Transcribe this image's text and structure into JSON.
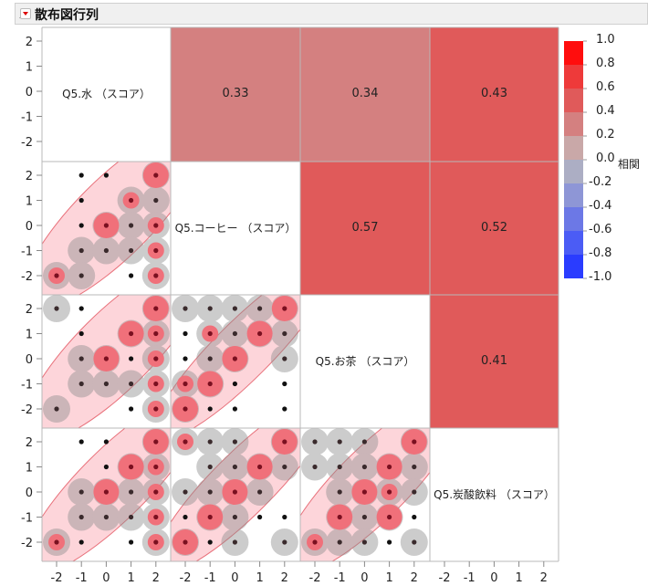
{
  "header": {
    "title": "散布図行列"
  },
  "chart_data": {
    "type": "scatter",
    "variables": [
      "Q5.水 （スコア）",
      "Q5.コーヒー （スコア）",
      "Q5.お茶 （スコア）",
      "Q5.炭酸飲料 （スコア）"
    ],
    "axis_range": [
      -2,
      2
    ],
    "tick_labels": [
      "-2",
      "-1",
      "0",
      "1",
      "2"
    ],
    "correlations": [
      {
        "row": 0,
        "col": 1,
        "value": "0.33"
      },
      {
        "row": 0,
        "col": 2,
        "value": "0.34"
      },
      {
        "row": 0,
        "col": 3,
        "value": "0.43"
      },
      {
        "row": 1,
        "col": 2,
        "value": "0.57"
      },
      {
        "row": 1,
        "col": 3,
        "value": "0.52"
      },
      {
        "row": 2,
        "col": 3,
        "value": "0.41"
      }
    ],
    "density_levels_note_keys": [
      "dot",
      "grey",
      "red-small",
      "red-large"
    ],
    "scatter_cells": [
      {
        "row": 1,
        "col": 0,
        "r": 0.33,
        "points": [
          [
            -1,
            2,
            0
          ],
          [
            0,
            2,
            0
          ],
          [
            2,
            2,
            3
          ],
          [
            -1,
            1,
            0
          ],
          [
            1,
            1,
            2
          ],
          [
            2,
            1,
            1
          ],
          [
            -1,
            0,
            0
          ],
          [
            0,
            0,
            3
          ],
          [
            1,
            0,
            1
          ],
          [
            2,
            0,
            2
          ],
          [
            -1,
            -1,
            1
          ],
          [
            0,
            -1,
            1
          ],
          [
            1,
            -1,
            1
          ],
          [
            2,
            -1,
            2
          ],
          [
            -2,
            -2,
            2
          ],
          [
            -1,
            -2,
            1
          ],
          [
            1,
            -2,
            0
          ],
          [
            2,
            -2,
            2
          ]
        ]
      },
      {
        "row": 2,
        "col": 0,
        "r": 0.34,
        "points": [
          [
            -2,
            2,
            1
          ],
          [
            -1,
            2,
            0
          ],
          [
            2,
            2,
            3
          ],
          [
            -1,
            1,
            0
          ],
          [
            1,
            1,
            3
          ],
          [
            2,
            1,
            2
          ],
          [
            -1,
            0,
            1
          ],
          [
            0,
            0,
            3
          ],
          [
            1,
            0,
            0
          ],
          [
            2,
            0,
            2
          ],
          [
            -1,
            -1,
            1
          ],
          [
            0,
            -1,
            1
          ],
          [
            1,
            -1,
            1
          ],
          [
            2,
            -1,
            2
          ],
          [
            -2,
            -2,
            1
          ],
          [
            1,
            -2,
            0
          ],
          [
            2,
            -2,
            2
          ]
        ]
      },
      {
        "row": 2,
        "col": 1,
        "r": 0.57,
        "points": [
          [
            -2,
            2,
            1
          ],
          [
            -1,
            2,
            1
          ],
          [
            0,
            2,
            1
          ],
          [
            1,
            2,
            1
          ],
          [
            2,
            2,
            3
          ],
          [
            -2,
            1,
            0
          ],
          [
            -1,
            1,
            2
          ],
          [
            0,
            1,
            1
          ],
          [
            1,
            1,
            3
          ],
          [
            2,
            1,
            1
          ],
          [
            -2,
            0,
            0
          ],
          [
            -1,
            0,
            1
          ],
          [
            0,
            0,
            3
          ],
          [
            2,
            0,
            1
          ],
          [
            -2,
            -1,
            2
          ],
          [
            -1,
            -1,
            3
          ],
          [
            0,
            -1,
            0
          ],
          [
            2,
            -1,
            0
          ],
          [
            -2,
            -2,
            3
          ],
          [
            -1,
            -2,
            0
          ],
          [
            0,
            -2,
            0
          ],
          [
            2,
            -2,
            0
          ]
        ]
      },
      {
        "row": 3,
        "col": 0,
        "r": 0.43,
        "points": [
          [
            -1,
            2,
            0
          ],
          [
            0,
            2,
            0
          ],
          [
            2,
            2,
            3
          ],
          [
            0,
            1,
            0
          ],
          [
            1,
            1,
            3
          ],
          [
            2,
            1,
            2
          ],
          [
            -1,
            0,
            1
          ],
          [
            0,
            0,
            3
          ],
          [
            1,
            0,
            1
          ],
          [
            2,
            0,
            2
          ],
          [
            -1,
            -1,
            1
          ],
          [
            0,
            -1,
            1
          ],
          [
            1,
            -1,
            1
          ],
          [
            2,
            -1,
            2
          ],
          [
            -2,
            -2,
            2
          ],
          [
            -1,
            -2,
            0
          ],
          [
            1,
            -2,
            0
          ],
          [
            2,
            -2,
            2
          ]
        ]
      },
      {
        "row": 3,
        "col": 1,
        "r": 0.52,
        "points": [
          [
            -2,
            2,
            2
          ],
          [
            -1,
            2,
            1
          ],
          [
            0,
            2,
            1
          ],
          [
            2,
            2,
            3
          ],
          [
            -1,
            1,
            1
          ],
          [
            0,
            1,
            1
          ],
          [
            1,
            1,
            3
          ],
          [
            2,
            1,
            1
          ],
          [
            -2,
            0,
            1
          ],
          [
            -1,
            0,
            1
          ],
          [
            0,
            0,
            3
          ],
          [
            1,
            0,
            1
          ],
          [
            -2,
            -1,
            0
          ],
          [
            -1,
            -1,
            3
          ],
          [
            0,
            -1,
            1
          ],
          [
            1,
            -1,
            0
          ],
          [
            2,
            -1,
            0
          ],
          [
            -2,
            -2,
            3
          ],
          [
            -1,
            -2,
            0
          ],
          [
            0,
            -2,
            1
          ],
          [
            2,
            -2,
            1
          ]
        ]
      },
      {
        "row": 3,
        "col": 2,
        "r": 0.41,
        "points": [
          [
            -2,
            2,
            1
          ],
          [
            -1,
            2,
            1
          ],
          [
            0,
            2,
            1
          ],
          [
            2,
            2,
            3
          ],
          [
            -2,
            1,
            1
          ],
          [
            -1,
            1,
            1
          ],
          [
            0,
            1,
            1
          ],
          [
            1,
            1,
            3
          ],
          [
            2,
            1,
            1
          ],
          [
            -1,
            0,
            1
          ],
          [
            0,
            0,
            3
          ],
          [
            1,
            0,
            2
          ],
          [
            2,
            0,
            1
          ],
          [
            -1,
            -1,
            3
          ],
          [
            0,
            -1,
            1
          ],
          [
            1,
            -1,
            3
          ],
          [
            2,
            -1,
            0
          ],
          [
            -2,
            -2,
            2
          ],
          [
            -1,
            -2,
            1
          ],
          [
            0,
            -2,
            1
          ],
          [
            1,
            -2,
            0
          ],
          [
            2,
            -2,
            1
          ]
        ]
      }
    ],
    "legend": {
      "title": "相関",
      "labels": [
        "1.0",
        "0.8",
        "0.6",
        "0.4",
        "0.2",
        "0.0",
        "-0.2",
        "-0.4",
        "-0.6",
        "-0.8",
        "-1.0"
      ],
      "colors": [
        "#ff0d0d",
        "#ee3a3a",
        "#e05a5a",
        "#d48080",
        "#c9a8a8",
        "#acaec4",
        "#8e96d6",
        "#6c78e6",
        "#4b5cf5",
        "#2a3cff"
      ]
    },
    "colors": {
      "density_red": "#f0707a",
      "ellipse_fill": "#fdd5da",
      "ellipse_stroke": "#e8707a"
    },
    "grid": false
  }
}
